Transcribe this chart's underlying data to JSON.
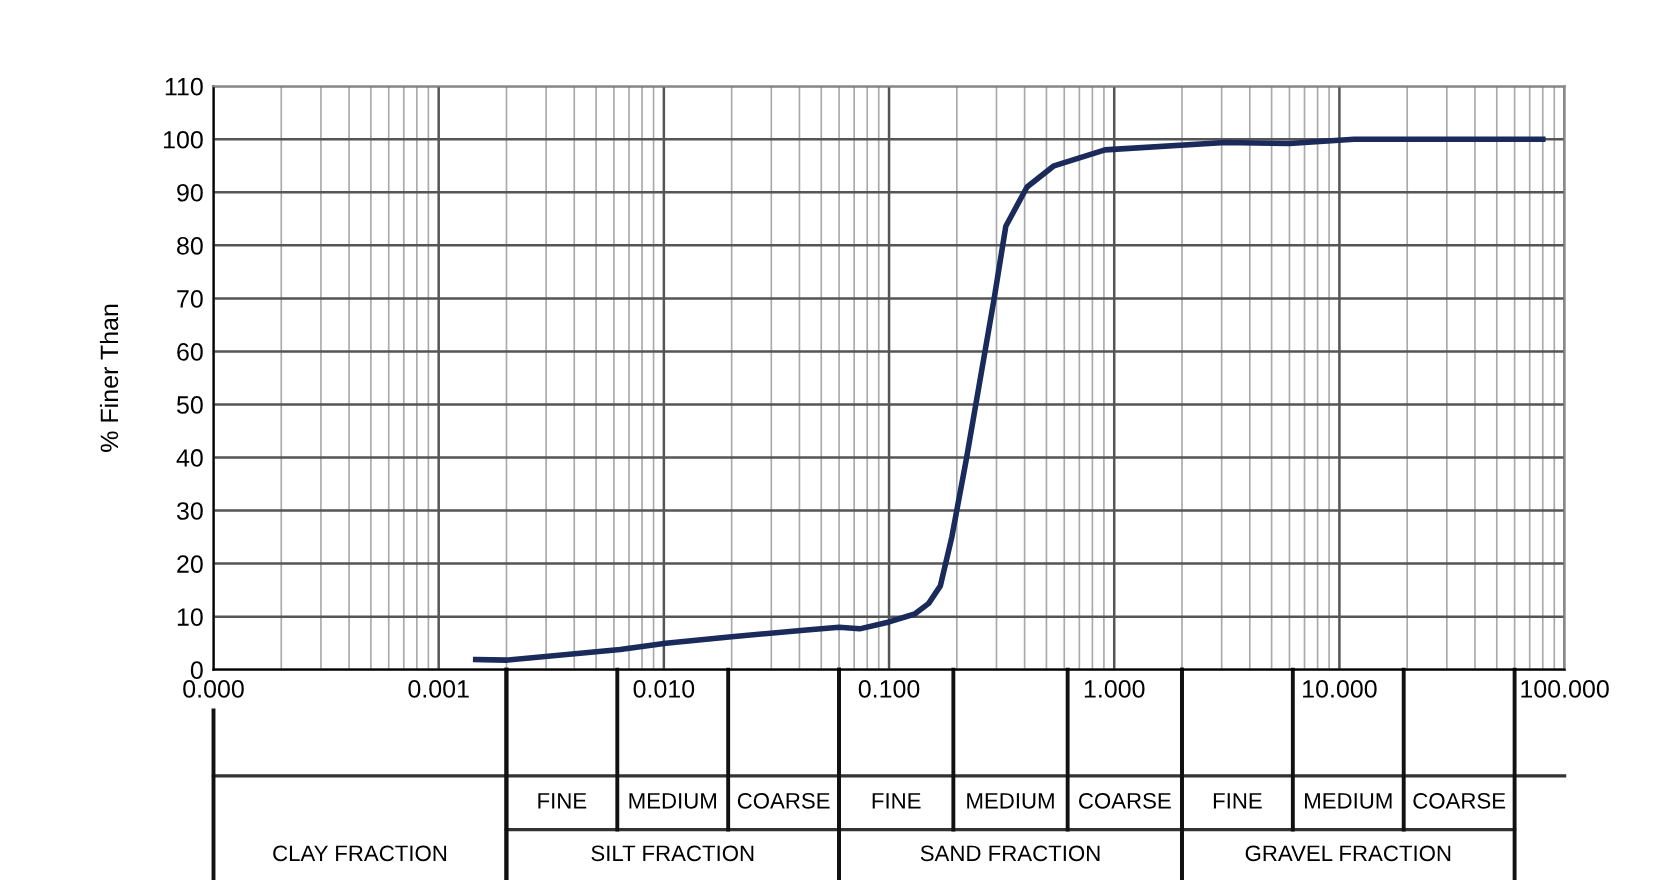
{
  "chart_data": {
    "type": "line",
    "ylabel": "% Finer Than",
    "x": [
      0.00146,
      0.002,
      0.0064,
      0.0102,
      0.02,
      0.043,
      0.06,
      0.074,
      0.1,
      0.13,
      0.15,
      0.169,
      0.19,
      0.22,
      0.293,
      0.33,
      0.41,
      0.54,
      0.91,
      3.1,
      6,
      11.6,
      30,
      80
    ],
    "series": [
      {
        "color": "#1a2a5a",
        "values": [
          1.9,
          1.8,
          3.8,
          5,
          6.2,
          7.5,
          8,
          7.7,
          9,
          10.5,
          12.5,
          15.8,
          25,
          39.5,
          70,
          83.6,
          91,
          95,
          98,
          99.4,
          99.2,
          100,
          100,
          100
        ]
      }
    ],
    "log": "x",
    "xlim": [
      0.0001,
      100
    ],
    "ylim": [
      0,
      110
    ],
    "xticks": [
      {
        "value": 0.0001,
        "label": "0.000"
      },
      {
        "value": 0.001,
        "label": "0.001"
      },
      {
        "value": 0.01,
        "label": "0.010"
      },
      {
        "value": 0.1,
        "label": "0.100"
      },
      {
        "value": 1,
        "label": "1.000"
      },
      {
        "value": 10,
        "label": "10.000"
      },
      {
        "value": 100,
        "label": "100.000"
      }
    ],
    "yticks": [
      0,
      10,
      20,
      30,
      40,
      50,
      60,
      70,
      80,
      90,
      100,
      110
    ],
    "grid": true,
    "marker": "none",
    "line_style": "solid",
    "annotations": [
      "FINE",
      "MEDIUM",
      "COARSE",
      "FINE",
      "MEDIUM",
      "COARSE",
      "FINE",
      "MEDIUM",
      "COARSE",
      "CLAY FRACTION",
      "SILT FRACTION",
      "SAND FRACTION",
      "GRAVEL FRACTION"
    ]
  }
}
